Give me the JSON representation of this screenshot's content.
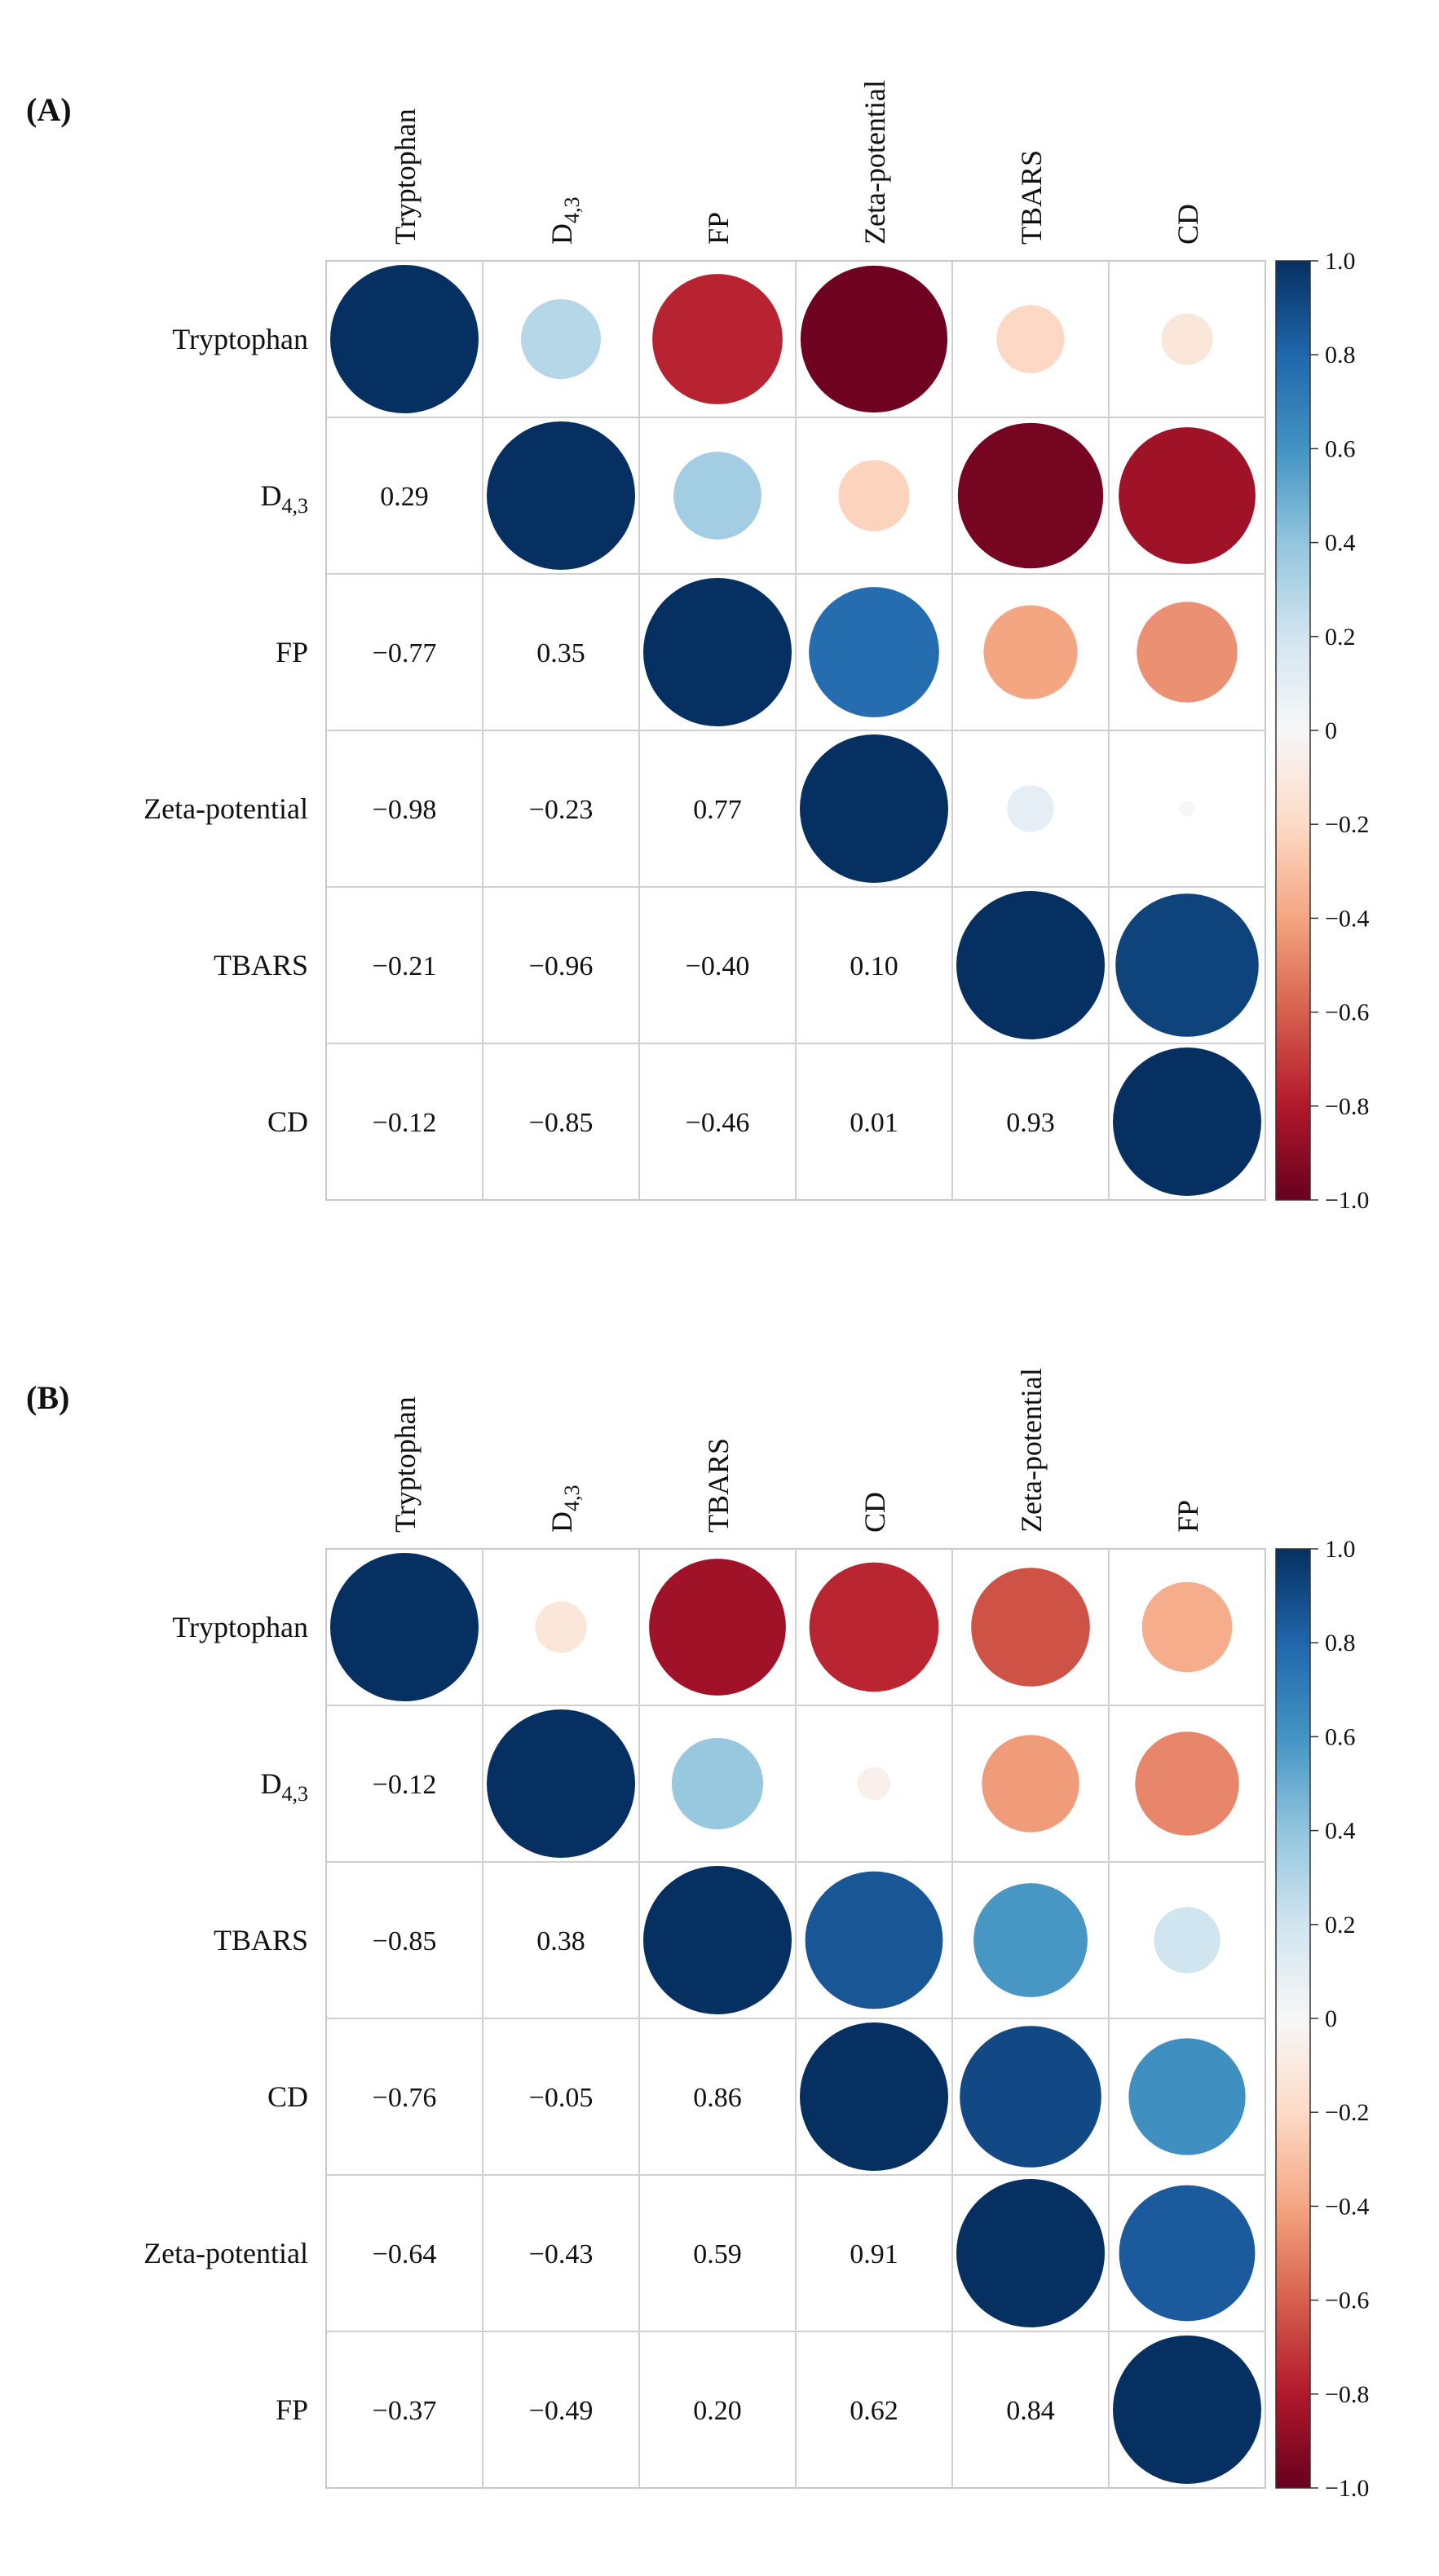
{
  "chart_data": [
    {
      "type": "heatmap",
      "panel_label": "(A)",
      "variables": [
        "Tryptophan",
        "D4,3",
        "FP",
        "Zeta-potential",
        "TBARS",
        "CD"
      ],
      "display_labels": [
        {
          "base": "Tryptophan",
          "sub": ""
        },
        {
          "base": "D",
          "sub": "4,3"
        },
        {
          "base": "FP",
          "sub": ""
        },
        {
          "base": "Zeta-potential",
          "sub": ""
        },
        {
          "base": "TBARS",
          "sub": ""
        },
        {
          "base": "CD",
          "sub": ""
        }
      ],
      "matrix": [
        [
          1.0,
          0.29,
          -0.77,
          -0.98,
          -0.21,
          -0.12
        ],
        [
          0.29,
          1.0,
          0.35,
          -0.23,
          -0.96,
          -0.85
        ],
        [
          -0.77,
          0.35,
          1.0,
          0.77,
          -0.4,
          -0.46
        ],
        [
          -0.98,
          -0.23,
          0.77,
          1.0,
          0.1,
          0.01
        ],
        [
          -0.21,
          -0.96,
          -0.4,
          0.1,
          1.0,
          0.93
        ],
        [
          -0.12,
          -0.85,
          -0.46,
          0.01,
          0.93,
          1.0
        ]
      ],
      "lower_labels": [
        [
          null,
          null,
          null,
          null,
          null,
          null
        ],
        [
          "0.29",
          null,
          null,
          null,
          null,
          null
        ],
        [
          "−0.77",
          "0.35",
          null,
          null,
          null,
          null
        ],
        [
          "−0.98",
          "−0.23",
          "0.77",
          null,
          null,
          null
        ],
        [
          "−0.21",
          "−0.96",
          "−0.40",
          "0.10",
          null,
          null
        ],
        [
          "−0.12",
          "−0.85",
          "−0.46",
          "0.01",
          "0.93",
          null
        ]
      ],
      "upper_display": "circles",
      "colorbar": {
        "range": [
          -1.0,
          1.0
        ],
        "ticks": [
          {
            "value": 1.0,
            "label": "1.0"
          },
          {
            "value": 0.8,
            "label": "0.8"
          },
          {
            "value": 0.6,
            "label": "0.6"
          },
          {
            "value": 0.4,
            "label": "0.4"
          },
          {
            "value": 0.2,
            "label": "0.2"
          },
          {
            "value": 0.0,
            "label": "0"
          },
          {
            "value": -0.2,
            "label": "−0.2"
          },
          {
            "value": -0.4,
            "label": "−0.4"
          },
          {
            "value": -0.6,
            "label": "−0.6"
          },
          {
            "value": -0.8,
            "label": "−0.8"
          },
          {
            "value": -1.0,
            "label": "−1.0"
          }
        ],
        "colormap": "RdBu",
        "colors": {
          "negative": "#67001f",
          "zero": "#f7f7f7",
          "positive": "#053061"
        }
      }
    },
    {
      "type": "heatmap",
      "panel_label": "(B)",
      "variables": [
        "Tryptophan",
        "D4,3",
        "TBARS",
        "CD",
        "Zeta-potential",
        "FP"
      ],
      "display_labels": [
        {
          "base": "Tryptophan",
          "sub": ""
        },
        {
          "base": "D",
          "sub": "4,3"
        },
        {
          "base": "TBARS",
          "sub": ""
        },
        {
          "base": "CD",
          "sub": ""
        },
        {
          "base": "Zeta-potential",
          "sub": ""
        },
        {
          "base": "FP",
          "sub": ""
        }
      ],
      "matrix": [
        [
          1.0,
          -0.12,
          -0.85,
          -0.76,
          -0.64,
          -0.37
        ],
        [
          -0.12,
          1.0,
          0.38,
          -0.05,
          -0.43,
          -0.49
        ],
        [
          -0.85,
          0.38,
          1.0,
          0.86,
          0.59,
          0.2
        ],
        [
          -0.76,
          -0.05,
          0.86,
          1.0,
          0.91,
          0.62
        ],
        [
          -0.64,
          -0.43,
          0.59,
          0.91,
          1.0,
          0.84
        ],
        [
          -0.37,
          -0.49,
          0.2,
          0.62,
          0.84,
          1.0
        ]
      ],
      "lower_labels": [
        [
          null,
          null,
          null,
          null,
          null,
          null
        ],
        [
          "−0.12",
          null,
          null,
          null,
          null,
          null
        ],
        [
          "−0.85",
          "0.38",
          null,
          null,
          null,
          null
        ],
        [
          "−0.76",
          "−0.05",
          "0.86",
          null,
          null,
          null
        ],
        [
          "−0.64",
          "−0.43",
          "0.59",
          "0.91",
          null,
          null
        ],
        [
          "−0.37",
          "−0.49",
          "0.20",
          "0.62",
          "0.84",
          null
        ]
      ],
      "upper_display": "circles",
      "colorbar": {
        "range": [
          -1.0,
          1.0
        ],
        "ticks": [
          {
            "value": 1.0,
            "label": "1.0"
          },
          {
            "value": 0.8,
            "label": "0.8"
          },
          {
            "value": 0.6,
            "label": "0.6"
          },
          {
            "value": 0.4,
            "label": "0.4"
          },
          {
            "value": 0.2,
            "label": "0.2"
          },
          {
            "value": 0.0,
            "label": "0"
          },
          {
            "value": -0.2,
            "label": "−0.2"
          },
          {
            "value": -0.4,
            "label": "−0.4"
          },
          {
            "value": -0.6,
            "label": "−0.6"
          },
          {
            "value": -0.8,
            "label": "−0.8"
          },
          {
            "value": -1.0,
            "label": "−1.0"
          }
        ],
        "colormap": "RdBu",
        "colors": {
          "negative": "#67001f",
          "zero": "#f7f7f7",
          "positive": "#053061"
        }
      }
    }
  ]
}
